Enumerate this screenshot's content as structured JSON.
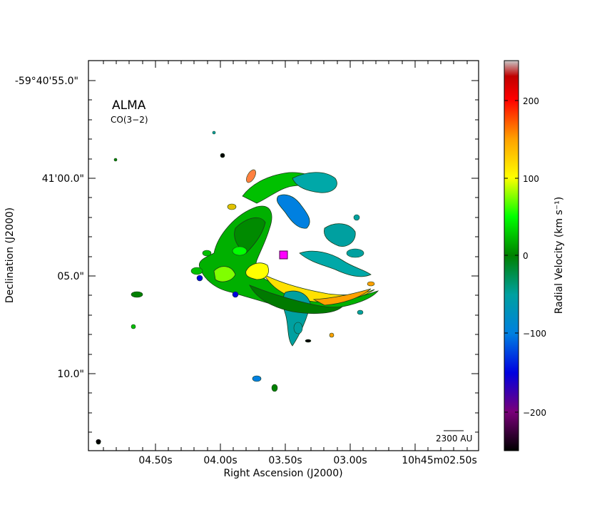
{
  "figure": {
    "telescope_label": "ALMA",
    "line_label": "CO(3−2)",
    "scale_bar_label": "2300 AU",
    "x_axis": {
      "label": "Right Ascension (J2000)",
      "ticks": [
        "04.50s",
        "04.00s",
        "03.50s",
        "03.00s",
        "10h45m02.50s"
      ]
    },
    "y_axis": {
      "label": "Declination (J2000)",
      "ticks": [
        "-59°40'55.0\"",
        "41'00.0\"",
        "05.0\"",
        "10.0\""
      ]
    },
    "colorbar": {
      "label": "Radial Velocity (km s⁻¹)",
      "ticks": [
        "200",
        "100",
        "0",
        "−100",
        "−200"
      ],
      "range": [
        -250,
        250
      ],
      "colormap": [
        "#000000",
        "#7a007a",
        "#0000e0",
        "#0080e0",
        "#00a0a0",
        "#008000",
        "#00ff00",
        "#ffff00",
        "#ffa000",
        "#ff0000",
        "#c00000",
        "#c8c8c8"
      ]
    },
    "marker_color": "#ff00ff"
  }
}
